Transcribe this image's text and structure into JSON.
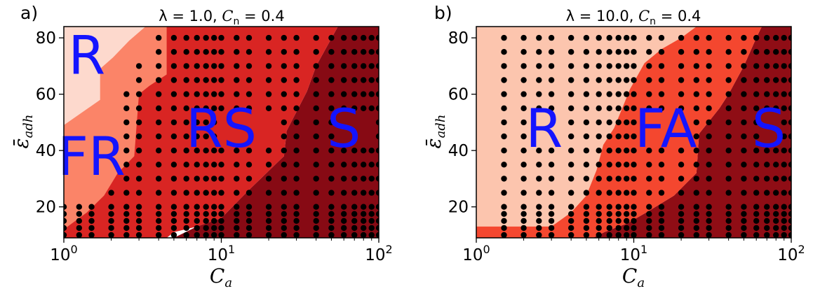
{
  "colors": {
    "level_1": "#fdd9cd",
    "level_2": "#fb8468",
    "level_3": "#d92523",
    "level_4": "#870a14",
    "level_1b": "#fcc5ae",
    "level_2b": "#f4472f",
    "level_4b": "#8f0d15",
    "dot": "#000000",
    "region_label": "#1414ff"
  },
  "chart_data": [
    {
      "type": "filled-contour",
      "panel_letter": "a)",
      "title": "λ = 1.0, C_n = 0.4",
      "title_parts": [
        "λ = 1.0, ",
        "C",
        "n",
        " = 0.4"
      ],
      "xlabel": "C_a",
      "xlabel_parts": [
        "C",
        "a"
      ],
      "ylabel": "ε̄_adh",
      "ylabel_parts": [
        "ε̄",
        "adh"
      ],
      "xscale": "log",
      "xlim": [
        1,
        100
      ],
      "ylim": [
        9,
        84
      ],
      "x_ticks": [
        {
          "value": 1,
          "base": "10",
          "exp": "0"
        },
        {
          "value": 10,
          "base": "10",
          "exp": "1"
        },
        {
          "value": 100,
          "base": "10",
          "exp": "2"
        }
      ],
      "y_ticks": [
        {
          "value": 20,
          "label": "20"
        },
        {
          "value": 40,
          "label": "40"
        },
        {
          "value": 60,
          "label": "60"
        },
        {
          "value": 80,
          "label": "80"
        }
      ],
      "regions": [
        {
          "label": "R",
          "color_key": "level_1",
          "label_at": [
            1.4,
            74
          ],
          "boundary": [
            [
              1,
              49
            ],
            [
              1.7,
              58
            ],
            [
              1.7,
              69
            ],
            [
              2.05,
              73
            ],
            [
              2.6,
              79
            ],
            [
              3.3,
              84
            ],
            [
              1,
              84
            ]
          ]
        },
        {
          "label": "FR",
          "color_key": "level_2",
          "label_at": [
            1.5,
            38
          ],
          "boundary": [
            [
              1,
              12
            ],
            [
              1.4,
              18
            ],
            [
              1.8,
              24
            ],
            [
              2.2,
              32
            ],
            [
              2.8,
              38
            ],
            [
              3.0,
              60
            ],
            [
              3.5,
              63
            ],
            [
              4.5,
              67
            ],
            [
              4.5,
              84
            ],
            [
              1,
              84
            ]
          ]
        },
        {
          "label": "RS",
          "color_key": "level_3",
          "label_at": [
            10,
            48
          ],
          "boundary": [
            [
              1,
              9
            ],
            [
              4.5,
              9
            ],
            [
              5,
              11
            ],
            [
              7,
              13
            ],
            [
              10,
              16
            ],
            [
              15,
              26
            ],
            [
              25,
              38
            ],
            [
              26,
              47
            ],
            [
              35,
              61
            ],
            [
              40,
              70
            ],
            [
              55,
              84
            ],
            [
              1,
              84
            ]
          ]
        },
        {
          "label": "S",
          "color_key": "level_4",
          "label_at": [
            60,
            48
          ],
          "boundary": [
            [
              5,
              9
            ],
            [
              100,
              9
            ],
            [
              100,
              84
            ],
            [
              55,
              84
            ],
            [
              40,
              70
            ],
            [
              35,
              61
            ],
            [
              26,
              47
            ],
            [
              25,
              38
            ],
            [
              15,
              26
            ],
            [
              10,
              16
            ],
            [
              7,
              13
            ]
          ]
        }
      ],
      "points": {
        "x": [
          1,
          1.25,
          1.5,
          2,
          2.5,
          3,
          4,
          5,
          6,
          7,
          8,
          9,
          10,
          12.5,
          15,
          20,
          25,
          30,
          40,
          50,
          60,
          70,
          80,
          90,
          100
        ],
        "y": [
          10,
          12.5,
          15,
          17.5,
          20,
          25,
          30,
          35,
          40,
          45,
          50,
          55,
          60,
          65,
          70,
          75,
          80
        ],
        "omit": [
          [
            1,
            60
          ],
          [
            1,
            65
          ],
          [
            1,
            70
          ],
          [
            1,
            75
          ],
          [
            1,
            80
          ],
          [
            1.25,
            60
          ],
          [
            1.25,
            65
          ],
          [
            1.25,
            70
          ],
          [
            1.25,
            75
          ],
          [
            1.25,
            80
          ],
          [
            1.5,
            60
          ],
          [
            1.5,
            65
          ],
          [
            1.5,
            70
          ],
          [
            1.5,
            75
          ],
          [
            1.5,
            80
          ],
          [
            1,
            25
          ],
          [
            1,
            30
          ],
          [
            1,
            35
          ],
          [
            1,
            40
          ],
          [
            1,
            45
          ],
          [
            1,
            50
          ],
          [
            1,
            55
          ],
          [
            1.25,
            25
          ],
          [
            1.25,
            30
          ],
          [
            1.25,
            35
          ],
          [
            1.25,
            40
          ],
          [
            1.25,
            45
          ],
          [
            1.25,
            50
          ],
          [
            1.25,
            55
          ],
          [
            1.5,
            25
          ],
          [
            1.5,
            30
          ],
          [
            1.5,
            35
          ],
          [
            1.5,
            40
          ],
          [
            1.5,
            45
          ],
          [
            1.5,
            50
          ],
          [
            1.5,
            55
          ],
          [
            2,
            30
          ],
          [
            2,
            35
          ],
          [
            2,
            40
          ],
          [
            2,
            45
          ],
          [
            2,
            50
          ],
          [
            2,
            55
          ],
          [
            2,
            60
          ],
          [
            2,
            65
          ],
          [
            2,
            70
          ],
          [
            2,
            75
          ],
          [
            2,
            80
          ],
          [
            2.5,
            80
          ],
          [
            2.5,
            75
          ],
          [
            2.5,
            70
          ],
          [
            2.5,
            65
          ],
          [
            3,
            75
          ],
          [
            3,
            80
          ],
          [
            10,
            45
          ],
          [
            10,
            50
          ],
          [
            12.5,
            45
          ],
          [
            12.5,
            50
          ],
          [
            15,
            45
          ],
          [
            15,
            50
          ],
          [
            20,
            45
          ],
          [
            20,
            50
          ],
          [
            60,
            45
          ],
          [
            60,
            50
          ],
          [
            70,
            45
          ],
          [
            70,
            50
          ],
          [
            80,
            45
          ],
          [
            80,
            50
          ],
          [
            90,
            45
          ],
          [
            90,
            50
          ]
        ]
      }
    },
    {
      "type": "filled-contour",
      "panel_letter": "b)",
      "title": "λ = 10.0, C_n = 0.4",
      "title_parts": [
        "λ = 10.0, ",
        "C",
        "n",
        " = 0.4"
      ],
      "xlabel": "C_a",
      "xlabel_parts": [
        "C",
        "a"
      ],
      "ylabel": "ε̄_adh",
      "ylabel_parts": [
        "ε̄",
        "adh"
      ],
      "xscale": "log",
      "xlim": [
        1,
        100
      ],
      "ylim": [
        9,
        84
      ],
      "x_ticks": [
        {
          "value": 1,
          "base": "10",
          "exp": "0"
        },
        {
          "value": 10,
          "base": "10",
          "exp": "1"
        },
        {
          "value": 100,
          "base": "10",
          "exp": "2"
        }
      ],
      "y_ticks": [
        {
          "value": 20,
          "label": "20"
        },
        {
          "value": 40,
          "label": "40"
        },
        {
          "value": 60,
          "label": "60"
        },
        {
          "value": 80,
          "label": "80"
        }
      ],
      "regions": [
        {
          "label": "R",
          "color_key": "level_1b",
          "label_at": [
            2.7,
            48
          ],
          "boundary": [
            [
              1,
              13
            ],
            [
              3,
              13
            ],
            [
              4,
              18
            ],
            [
              5,
              24
            ],
            [
              5.8,
              33
            ],
            [
              6.4,
              42
            ],
            [
              7.5,
              48
            ],
            [
              9.5,
              62
            ],
            [
              11.7,
              71
            ],
            [
              15,
              76
            ],
            [
              20,
              80
            ],
            [
              25,
              84
            ],
            [
              1,
              84
            ]
          ]
        },
        {
          "label": "FA",
          "color_key": "level_2b",
          "label_at": [
            16,
            48
          ],
          "boundary": [
            [
              1,
              9
            ],
            [
              5.5,
              9
            ],
            [
              6.5,
              11
            ],
            [
              8,
              13
            ],
            [
              9,
              14
            ],
            [
              12,
              18
            ],
            [
              18,
              24
            ],
            [
              25,
              32
            ],
            [
              26,
              46
            ],
            [
              35,
              55
            ],
            [
              40,
              60
            ],
            [
              50,
              70
            ],
            [
              60,
              80
            ],
            [
              65,
              84
            ],
            [
              1,
              84
            ]
          ]
        },
        {
          "label": "S",
          "color_key": "level_4b",
          "label_at": [
            72,
            48
          ],
          "boundary": [
            [
              5.5,
              9
            ],
            [
              100,
              9
            ],
            [
              100,
              84
            ],
            [
              65,
              84
            ],
            [
              60,
              80
            ],
            [
              50,
              70
            ],
            [
              40,
              60
            ],
            [
              35,
              55
            ],
            [
              26,
              46
            ],
            [
              25,
              32
            ],
            [
              18,
              24
            ],
            [
              12,
              18
            ],
            [
              9,
              14
            ],
            [
              8,
              13
            ],
            [
              6.5,
              11
            ]
          ]
        }
      ],
      "points": {
        "x": [
          1,
          1.25,
          1.5,
          2,
          2.5,
          3,
          4,
          5,
          6,
          7,
          8,
          9,
          10,
          12.5,
          15,
          20,
          25,
          30,
          40,
          50,
          60,
          70,
          80,
          90,
          100
        ],
        "y": [
          10,
          12.5,
          15,
          17.5,
          20,
          25,
          30,
          35,
          40,
          45,
          50,
          55,
          60,
          65,
          70,
          75,
          80
        ],
        "omit": [
          [
            1,
            10
          ],
          [
            1,
            12.5
          ],
          [
            1,
            15
          ],
          [
            1,
            17.5
          ],
          [
            1,
            20
          ],
          [
            1,
            25
          ],
          [
            1,
            30
          ],
          [
            1,
            35
          ],
          [
            1,
            40
          ],
          [
            1,
            45
          ],
          [
            1,
            50
          ],
          [
            1,
            55
          ],
          [
            1,
            60
          ],
          [
            1,
            65
          ],
          [
            1,
            70
          ],
          [
            1,
            75
          ],
          [
            1,
            80
          ],
          [
            1.25,
            10
          ],
          [
            1.25,
            12.5
          ],
          [
            1.25,
            15
          ],
          [
            1.25,
            17.5
          ],
          [
            1.25,
            20
          ],
          [
            1.25,
            25
          ],
          [
            1.25,
            30
          ],
          [
            1.25,
            35
          ],
          [
            1.25,
            40
          ],
          [
            1.25,
            45
          ],
          [
            1.25,
            50
          ],
          [
            1.25,
            55
          ],
          [
            1.25,
            60
          ],
          [
            1.25,
            65
          ],
          [
            1.25,
            70
          ],
          [
            1.25,
            75
          ],
          [
            1.25,
            80
          ],
          [
            2.5,
            45
          ],
          [
            2.5,
            50
          ],
          [
            3,
            45
          ],
          [
            3,
            50
          ],
          [
            12.5,
            45
          ],
          [
            12.5,
            50
          ],
          [
            15,
            45
          ],
          [
            15,
            50
          ],
          [
            20,
            45
          ],
          [
            20,
            50
          ],
          [
            70,
            45
          ],
          [
            70,
            50
          ],
          [
            80,
            45
          ],
          [
            80,
            50
          ]
        ]
      }
    }
  ]
}
